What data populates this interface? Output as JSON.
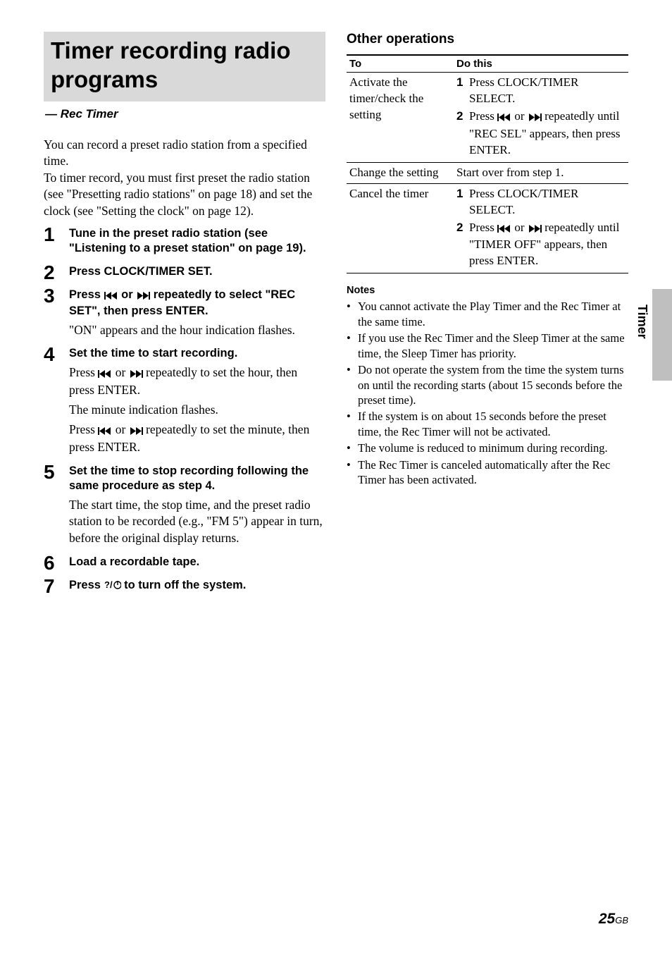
{
  "left": {
    "title": "Timer recording radio programs",
    "subtitle": "— Rec Timer",
    "intro": "You can record a preset radio station from a specified time.\nTo timer record, you must first preset the radio station (see \"Presetting radio stations\" on page 18) and set the clock (see \"Setting the clock\" on page 12).",
    "steps": [
      {
        "n": "1",
        "head": "Tune in the preset radio station (see \"Listening to a preset station\" on page 19)."
      },
      {
        "n": "2",
        "head": "Press CLOCK/TIMER SET."
      },
      {
        "n": "3",
        "head_pre": "Press ",
        "head_post": " repeatedly to select \"REC SET\", then press ENTER.",
        "desc": "\"ON\" appears and the hour indication flashes."
      },
      {
        "n": "4",
        "head": "Set the time to start recording.",
        "desc_pre1": "Press ",
        "desc_post1": " repeatedly to set the hour, then press ENTER.",
        "desc_mid": "The minute indication flashes.",
        "desc_pre2": "Press ",
        "desc_post2": " repeatedly to set the minute, then press ENTER."
      },
      {
        "n": "5",
        "head": "Set the time to stop recording following the same procedure as step 4.",
        "desc": "The start time, the stop time, and the preset radio station to be recorded (e.g., \"FM 5\") appear in turn, before the original display returns."
      },
      {
        "n": "6",
        "head": "Load a recordable tape."
      },
      {
        "n": "7",
        "head_pre": "Press ",
        "head_post": " to turn off the system."
      }
    ]
  },
  "right": {
    "ops_title": "Other operations",
    "th_to": "To",
    "th_do": "Do this",
    "rows": [
      {
        "to": "Activate the timer/check the setting",
        "sub": [
          {
            "n": "1",
            "body": "Press CLOCK/TIMER SELECT."
          },
          {
            "n": "2",
            "body_pre": "Press ",
            "body_post": " repeatedly until \"REC SEL\" appears, then press ENTER."
          }
        ]
      },
      {
        "to": "Change the setting",
        "plain": "Start over from step 1."
      },
      {
        "to": "Cancel the timer",
        "sub": [
          {
            "n": "1",
            "body": "Press CLOCK/TIMER SELECT."
          },
          {
            "n": "2",
            "body_pre": "Press ",
            "body_post": " repeatedly until \"TIMER OFF\" appears, then press ENTER."
          }
        ]
      }
    ],
    "notes_title": "Notes",
    "notes": [
      "You cannot activate the Play Timer and the Rec Timer at the same time.",
      "If you use the Rec Timer and the Sleep Timer at the same time, the Sleep Timer has priority.",
      "Do not operate the system from the time the system turns on until the recording starts (about 15 seconds before the preset time).",
      "If the system is on about 15 seconds before the preset time, the Rec Timer will not be activated.",
      "The volume is reduced to minimum during recording.",
      "The Rec Timer is canceled automatically after the Rec Timer has been activated."
    ]
  },
  "side_tab": "Timer",
  "page_num": "25",
  "page_suffix": "GB",
  "icons": {
    "prev_svg": "<svg width='20' height='11' viewBox='0 0 20 11'><rect x='0' y='0' width='2' height='11' fill='#000'/><polygon points='2,5.5 10,0 10,11' fill='#000'/><polygon points='10,5.5 18,0 18,11' fill='#000'/></svg>",
    "next_svg": "<svg width='20' height='11' viewBox='0 0 20 11'><polygon points='2,0 10,5.5 2,11' fill='#000'/><polygon points='10,0 18,5.5 10,11' fill='#000'/><rect x='18' y='0' width='2' height='11' fill='#000'/></svg>",
    "power_svg": "<svg width='24' height='14' viewBox='0 0 24 14'><text x='0' y='11' font-family=\"Arial\" font-weight=\"bold\" font-size=\"13\">?/</text><circle cx='19' cy='7' r='5' fill='none' stroke='#000' stroke-width='1.4'/><line x1='19' y1='1' x2='19' y2='7' stroke='#000' stroke-width='1.4'/></svg>",
    "prev_or_next": " or "
  }
}
